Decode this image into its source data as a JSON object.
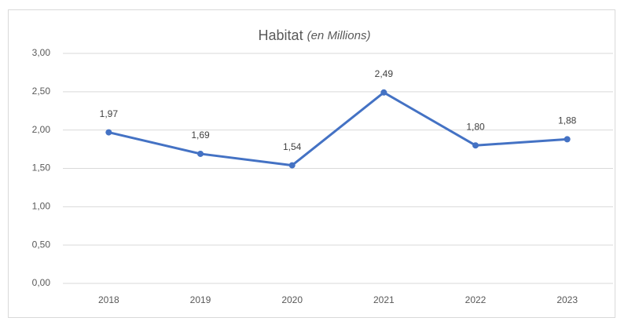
{
  "chart_data": {
    "type": "line",
    "title": "Habitat",
    "subtitle": "(en Millions)",
    "categories": [
      "2018",
      "2019",
      "2020",
      "2021",
      "2022",
      "2023"
    ],
    "series": [
      {
        "name": "Habitat",
        "color": "#4472c4",
        "values": [
          1.97,
          1.69,
          1.54,
          2.49,
          1.8,
          1.88
        ],
        "value_labels": [
          "1,97",
          "1,69",
          "1,54",
          "2,49",
          "1,80",
          "1,88"
        ]
      }
    ],
    "ylim": [
      0,
      3
    ],
    "yticks": [
      {
        "value": 0,
        "label": "0,00"
      },
      {
        "value": 0.5,
        "label": "0,50"
      },
      {
        "value": 1,
        "label": "1,00"
      },
      {
        "value": 1.5,
        "label": "1,50"
      },
      {
        "value": 2,
        "label": "2,00"
      },
      {
        "value": 2.5,
        "label": "2,50"
      },
      {
        "value": 3,
        "label": "3,00"
      }
    ],
    "grid": true
  }
}
